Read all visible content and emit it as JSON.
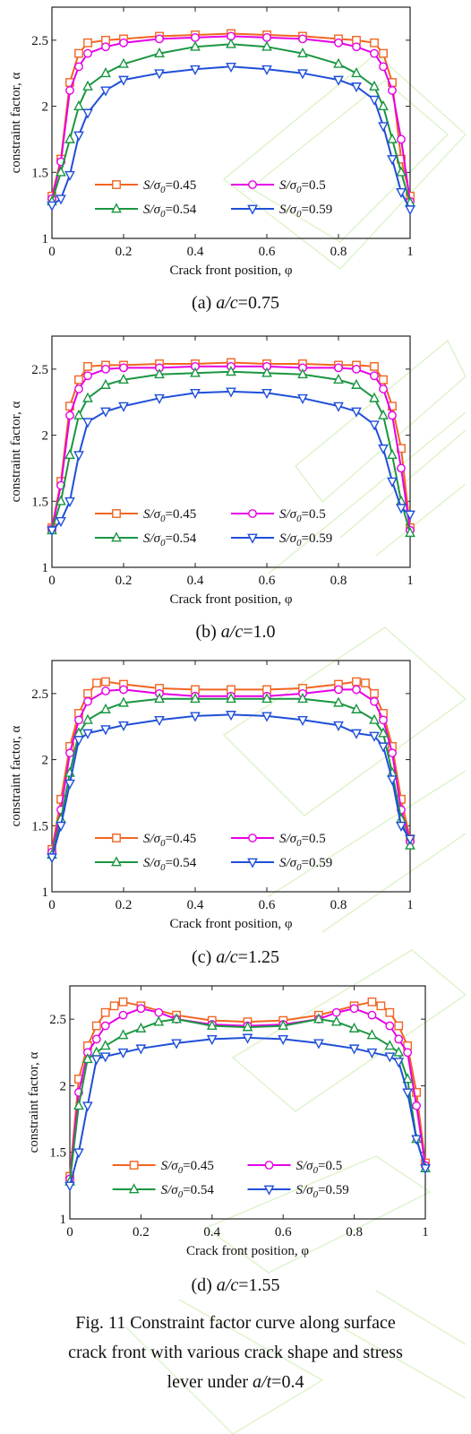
{
  "figure": {
    "caption_lines": [
      "Fig. 11 Constraint factor curve along surface",
      "crack front with various crack shape and stress",
      "lever under a/t=0.4"
    ]
  },
  "chart_data": [
    {
      "type": "line",
      "panel_label": "(a) a/c=0.75",
      "xlabel": "Crack front position, φ",
      "ylabel": "constraint factor, α",
      "xlim": [
        0,
        1
      ],
      "ylim": [
        1,
        2.75
      ],
      "xticks": [
        "0",
        "0.2",
        "0.4",
        "0.6",
        "0.8",
        "1"
      ],
      "yticks": [
        "1",
        "1.5",
        "2",
        "2.5"
      ],
      "legend_position": "lower-center",
      "series": [
        {
          "name": "S/σ0=0.45",
          "color": "#f26522",
          "marker": "square",
          "x": [
            0,
            0.025,
            0.05,
            0.075,
            0.1,
            0.15,
            0.2,
            0.3,
            0.4,
            0.5,
            0.6,
            0.7,
            0.8,
            0.85,
            0.9,
            0.925,
            0.95,
            0.975,
            1
          ],
          "y": [
            1.32,
            1.6,
            2.18,
            2.4,
            2.48,
            2.5,
            2.51,
            2.53,
            2.54,
            2.55,
            2.54,
            2.53,
            2.51,
            2.5,
            2.48,
            2.4,
            2.18,
            1.6,
            1.32
          ]
        },
        {
          "name": "S/σ0=0.5",
          "color": "#e600e6",
          "marker": "circle",
          "x": [
            0,
            0.025,
            0.05,
            0.075,
            0.1,
            0.15,
            0.2,
            0.3,
            0.4,
            0.5,
            0.6,
            0.7,
            0.8,
            0.85,
            0.9,
            0.925,
            0.95,
            0.975,
            1
          ],
          "y": [
            1.3,
            1.58,
            2.12,
            2.3,
            2.4,
            2.45,
            2.48,
            2.51,
            2.52,
            2.53,
            2.52,
            2.51,
            2.48,
            2.45,
            2.4,
            2.3,
            2.12,
            1.75,
            1.28
          ]
        },
        {
          "name": "S/σ0=0.54",
          "color": "#1a9641",
          "marker": "triangle-up",
          "x": [
            0,
            0.025,
            0.05,
            0.075,
            0.1,
            0.15,
            0.2,
            0.3,
            0.4,
            0.5,
            0.6,
            0.7,
            0.8,
            0.85,
            0.9,
            0.925,
            0.95,
            0.975,
            1
          ],
          "y": [
            1.28,
            1.5,
            1.75,
            2.0,
            2.15,
            2.25,
            2.32,
            2.4,
            2.45,
            2.47,
            2.45,
            2.4,
            2.32,
            2.25,
            2.15,
            2.0,
            1.75,
            1.5,
            1.27
          ]
        },
        {
          "name": "S/σ0=0.59",
          "color": "#1f4fd8",
          "marker": "triangle-down",
          "x": [
            0,
            0.025,
            0.05,
            0.075,
            0.1,
            0.15,
            0.2,
            0.3,
            0.4,
            0.5,
            0.6,
            0.7,
            0.8,
            0.85,
            0.9,
            0.925,
            0.95,
            0.975,
            1
          ],
          "y": [
            1.25,
            1.3,
            1.48,
            1.78,
            1.95,
            2.12,
            2.2,
            2.25,
            2.28,
            2.3,
            2.28,
            2.25,
            2.2,
            2.15,
            2.05,
            1.85,
            1.6,
            1.35,
            1.22
          ]
        }
      ]
    },
    {
      "type": "line",
      "panel_label": "(b) a/c=1.0",
      "xlabel": "Crack front position, φ",
      "ylabel": "constraint factor, α",
      "xlim": [
        0,
        1
      ],
      "ylim": [
        1,
        2.75
      ],
      "xticks": [
        "0",
        "0.2",
        "0.4",
        "0.6",
        "0.8",
        "1"
      ],
      "yticks": [
        "1",
        "1.5",
        "2",
        "2.5"
      ],
      "legend_position": "lower-center",
      "series": [
        {
          "name": "S/σ0=0.45",
          "color": "#f26522",
          "marker": "square",
          "x": [
            0,
            0.025,
            0.05,
            0.075,
            0.1,
            0.15,
            0.2,
            0.3,
            0.4,
            0.5,
            0.6,
            0.7,
            0.8,
            0.85,
            0.9,
            0.925,
            0.95,
            0.975,
            1
          ],
          "y": [
            1.3,
            1.65,
            2.22,
            2.42,
            2.52,
            2.53,
            2.53,
            2.54,
            2.54,
            2.55,
            2.54,
            2.54,
            2.53,
            2.53,
            2.52,
            2.42,
            2.22,
            1.9,
            1.3
          ]
        },
        {
          "name": "S/σ0=0.5",
          "color": "#e600e6",
          "marker": "circle",
          "x": [
            0,
            0.025,
            0.05,
            0.075,
            0.1,
            0.15,
            0.2,
            0.3,
            0.4,
            0.5,
            0.6,
            0.7,
            0.8,
            0.85,
            0.9,
            0.925,
            0.95,
            0.975,
            1
          ],
          "y": [
            1.29,
            1.62,
            2.15,
            2.35,
            2.45,
            2.5,
            2.51,
            2.51,
            2.52,
            2.52,
            2.52,
            2.51,
            2.51,
            2.5,
            2.45,
            2.35,
            2.15,
            1.75,
            1.28
          ]
        },
        {
          "name": "S/σ0=0.54",
          "color": "#1a9641",
          "marker": "triangle-up",
          "x": [
            0,
            0.025,
            0.05,
            0.075,
            0.1,
            0.15,
            0.2,
            0.3,
            0.4,
            0.5,
            0.6,
            0.7,
            0.8,
            0.85,
            0.9,
            0.925,
            0.95,
            0.975,
            1
          ],
          "y": [
            1.28,
            1.5,
            1.85,
            2.15,
            2.28,
            2.38,
            2.42,
            2.46,
            2.47,
            2.48,
            2.47,
            2.46,
            2.42,
            2.38,
            2.28,
            2.15,
            1.85,
            1.5,
            1.26
          ]
        },
        {
          "name": "S/σ0=0.59",
          "color": "#1f4fd8",
          "marker": "triangle-down",
          "x": [
            0,
            0.025,
            0.05,
            0.075,
            0.1,
            0.15,
            0.2,
            0.3,
            0.4,
            0.5,
            0.6,
            0.7,
            0.8,
            0.85,
            0.9,
            0.925,
            0.95,
            0.975,
            1
          ],
          "y": [
            1.28,
            1.35,
            1.5,
            1.85,
            2.1,
            2.18,
            2.22,
            2.28,
            2.32,
            2.33,
            2.32,
            2.28,
            2.22,
            2.18,
            2.08,
            1.9,
            1.65,
            1.45,
            1.4
          ]
        }
      ]
    },
    {
      "type": "line",
      "panel_label": "(c) a/c=1.25",
      "xlabel": "Crack front position, φ",
      "ylabel": "constraint factor, α",
      "xlim": [
        0,
        1
      ],
      "ylim": [
        1,
        2.75
      ],
      "xticks": [
        "0",
        "0.2",
        "0.4",
        "0.6",
        "0.8",
        "1"
      ],
      "yticks": [
        "1",
        "1.5",
        "2",
        "2.5"
      ],
      "legend_position": "lower-center",
      "series": [
        {
          "name": "S/σ0=0.45",
          "color": "#f26522",
          "marker": "square",
          "x": [
            0,
            0.025,
            0.05,
            0.075,
            0.1,
            0.125,
            0.15,
            0.2,
            0.3,
            0.4,
            0.5,
            0.6,
            0.7,
            0.8,
            0.85,
            0.875,
            0.9,
            0.925,
            0.95,
            0.975,
            1
          ],
          "y": [
            1.32,
            1.7,
            2.1,
            2.35,
            2.5,
            2.58,
            2.59,
            2.57,
            2.54,
            2.53,
            2.53,
            2.53,
            2.54,
            2.57,
            2.59,
            2.58,
            2.5,
            2.35,
            2.1,
            1.7,
            1.4
          ]
        },
        {
          "name": "S/σ0=0.5",
          "color": "#e600e6",
          "marker": "circle",
          "x": [
            0,
            0.025,
            0.05,
            0.075,
            0.1,
            0.15,
            0.2,
            0.3,
            0.4,
            0.5,
            0.6,
            0.7,
            0.8,
            0.85,
            0.9,
            0.925,
            0.95,
            0.975,
            1
          ],
          "y": [
            1.3,
            1.62,
            2.05,
            2.3,
            2.44,
            2.52,
            2.53,
            2.5,
            2.48,
            2.48,
            2.48,
            2.5,
            2.53,
            2.53,
            2.44,
            2.3,
            2.05,
            1.62,
            1.38
          ]
        },
        {
          "name": "S/σ0=0.54",
          "color": "#1a9641",
          "marker": "triangle-up",
          "x": [
            0,
            0.025,
            0.05,
            0.075,
            0.1,
            0.15,
            0.2,
            0.3,
            0.4,
            0.5,
            0.6,
            0.7,
            0.8,
            0.85,
            0.9,
            0.925,
            0.95,
            0.975,
            1
          ],
          "y": [
            1.28,
            1.55,
            1.9,
            2.2,
            2.3,
            2.38,
            2.43,
            2.46,
            2.46,
            2.46,
            2.46,
            2.46,
            2.43,
            2.38,
            2.3,
            2.2,
            1.9,
            1.55,
            1.35
          ]
        },
        {
          "name": "S/σ0=0.59",
          "color": "#1f4fd8",
          "marker": "triangle-down",
          "x": [
            0,
            0.025,
            0.05,
            0.075,
            0.1,
            0.15,
            0.2,
            0.3,
            0.4,
            0.5,
            0.6,
            0.7,
            0.8,
            0.85,
            0.9,
            0.925,
            0.95,
            0.975,
            1
          ],
          "y": [
            1.26,
            1.5,
            1.82,
            2.15,
            2.2,
            2.23,
            2.26,
            2.3,
            2.33,
            2.34,
            2.33,
            2.3,
            2.26,
            2.2,
            2.18,
            2.1,
            1.85,
            1.5,
            1.4
          ]
        }
      ]
    },
    {
      "type": "line",
      "panel_label": "(d) a/c=1.55",
      "xlabel": "Crack front position, φ",
      "ylabel": "constraint factor, α",
      "xlim": [
        0,
        1
      ],
      "ylim": [
        1,
        2.75
      ],
      "xticks": [
        "0",
        "0.2",
        "0.4",
        "0.6",
        "0.8",
        "1"
      ],
      "yticks": [
        "1",
        "1.5",
        "2",
        "2.5"
      ],
      "legend_position": "lower-center",
      "series": [
        {
          "name": "S/σ0=0.45",
          "color": "#f26522",
          "marker": "square",
          "x": [
            0,
            0.025,
            0.05,
            0.075,
            0.1,
            0.125,
            0.15,
            0.2,
            0.3,
            0.4,
            0.5,
            0.6,
            0.7,
            0.8,
            0.85,
            0.875,
            0.9,
            0.925,
            0.95,
            0.975,
            1
          ],
          "y": [
            1.32,
            2.05,
            2.3,
            2.45,
            2.55,
            2.6,
            2.63,
            2.6,
            2.53,
            2.49,
            2.48,
            2.49,
            2.53,
            2.6,
            2.63,
            2.6,
            2.55,
            2.45,
            2.3,
            1.95,
            1.42
          ]
        },
        {
          "name": "S/σ0=0.5",
          "color": "#e600e6",
          "marker": "circle",
          "x": [
            0,
            0.025,
            0.05,
            0.075,
            0.1,
            0.15,
            0.2,
            0.25,
            0.3,
            0.4,
            0.5,
            0.6,
            0.7,
            0.75,
            0.8,
            0.85,
            0.9,
            0.925,
            0.95,
            0.975,
            1
          ],
          "y": [
            1.3,
            1.95,
            2.25,
            2.35,
            2.45,
            2.53,
            2.58,
            2.55,
            2.5,
            2.46,
            2.45,
            2.46,
            2.5,
            2.55,
            2.58,
            2.53,
            2.45,
            2.35,
            2.25,
            1.85,
            1.4
          ]
        },
        {
          "name": "S/σ0=0.54",
          "color": "#1a9641",
          "marker": "triangle-up",
          "x": [
            0,
            0.025,
            0.05,
            0.075,
            0.1,
            0.15,
            0.2,
            0.25,
            0.3,
            0.4,
            0.5,
            0.6,
            0.7,
            0.75,
            0.8,
            0.85,
            0.9,
            0.925,
            0.95,
            0.975,
            1
          ],
          "y": [
            1.28,
            1.85,
            2.2,
            2.25,
            2.3,
            2.38,
            2.43,
            2.48,
            2.5,
            2.45,
            2.44,
            2.45,
            2.5,
            2.48,
            2.43,
            2.38,
            2.3,
            2.25,
            2.05,
            1.6,
            1.38
          ]
        },
        {
          "name": "S/σ0=0.59",
          "color": "#1f4fd8",
          "marker": "triangle-down",
          "x": [
            0,
            0.025,
            0.05,
            0.075,
            0.1,
            0.15,
            0.2,
            0.3,
            0.4,
            0.5,
            0.6,
            0.7,
            0.8,
            0.85,
            0.9,
            0.925,
            0.95,
            0.975,
            1
          ],
          "y": [
            1.25,
            1.5,
            1.85,
            2.2,
            2.22,
            2.25,
            2.28,
            2.32,
            2.35,
            2.36,
            2.35,
            2.32,
            2.28,
            2.25,
            2.22,
            2.18,
            1.95,
            1.6,
            1.38
          ]
        }
      ]
    }
  ]
}
